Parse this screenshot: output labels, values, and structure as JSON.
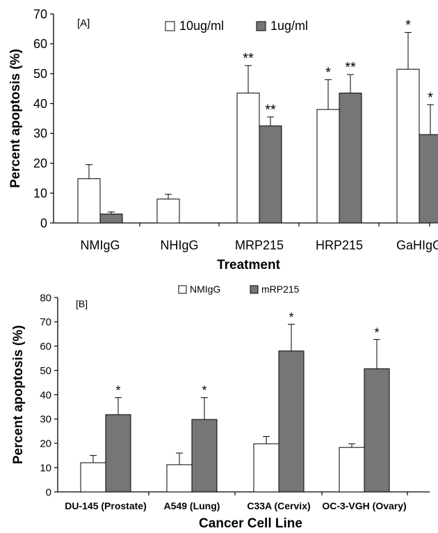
{
  "chart_data": [
    {
      "type": "bar",
      "panel_label": "[A]",
      "title": "",
      "xlabel": "Treatment",
      "ylabel": "Percent apoptosis (%)",
      "ylim": [
        0,
        70
      ],
      "yticks": [
        0,
        10,
        20,
        30,
        40,
        50,
        60,
        70
      ],
      "grid": false,
      "legend_position": "top-center",
      "categories": [
        "NMIgG",
        "NHIgG",
        "MRP215",
        "HRP215",
        "GaHIgG"
      ],
      "series": [
        {
          "name": "10ug/ml",
          "color": "#ffffff",
          "values": [
            14.8,
            8,
            43.5,
            38,
            51.5
          ],
          "errors": [
            4.7,
            1.6,
            9.2,
            10,
            12.3
          ],
          "significance": [
            "",
            "",
            "**",
            "*",
            "*"
          ]
        },
        {
          "name": "1ug/ml",
          "color": "#767676",
          "values": [
            3,
            null,
            32.5,
            43.5,
            29.6
          ],
          "errors": [
            0.7,
            null,
            3,
            6.2,
            10
          ],
          "significance": [
            "",
            "",
            "**",
            "**",
            "*"
          ]
        }
      ]
    },
    {
      "type": "bar",
      "panel_label": "[B]",
      "title": "",
      "xlabel": "Cancer Cell Line",
      "ylabel": "Percent apoptosis (%)",
      "ylim": [
        0,
        80
      ],
      "yticks": [
        0,
        10,
        20,
        30,
        40,
        50,
        60,
        70,
        80
      ],
      "grid": false,
      "legend_position": "top-center",
      "categories": [
        "DU-145 (Prostate)",
        "A549 (Lung)",
        "C33A (Cervix)",
        "OC-3-VGH (Ovary)"
      ],
      "series": [
        {
          "name": "NMIgG",
          "color": "#ffffff",
          "values": [
            12,
            11.2,
            19.8,
            18.3
          ],
          "errors": [
            3,
            4.8,
            3,
            1.5
          ],
          "significance": [
            "",
            "",
            "",
            ""
          ]
        },
        {
          "name": "mRP215",
          "color": "#767676",
          "values": [
            31.8,
            29.8,
            58,
            50.7
          ],
          "errors": [
            7,
            9,
            11,
            12
          ],
          "significance": [
            "*",
            "*",
            "*",
            "*"
          ]
        }
      ]
    }
  ]
}
